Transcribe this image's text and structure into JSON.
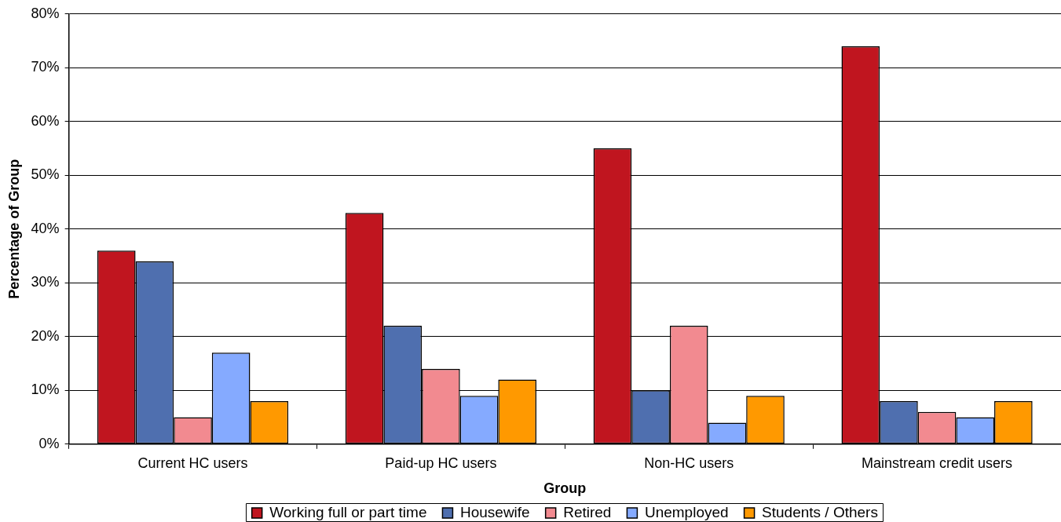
{
  "chart_data": {
    "type": "bar",
    "xlabel": "Group",
    "ylabel": "Percentage of Group",
    "categories": [
      "Current HC users",
      "Paid-up HC users",
      "Non-HC users",
      "Mainstream credit users"
    ],
    "series": [
      {
        "name": "Working full or part time",
        "color": "#c0151f",
        "values": [
          36,
          43,
          55,
          74
        ]
      },
      {
        "name": "Housewife",
        "color": "#4f6faf",
        "values": [
          34,
          22,
          10,
          8
        ]
      },
      {
        "name": "Retired",
        "color": "#f28a90",
        "values": [
          5,
          14,
          22,
          6
        ]
      },
      {
        "name": "Unemployed",
        "color": "#85aaff",
        "values": [
          17,
          9,
          4,
          5
        ]
      },
      {
        "name": "Students / Others",
        "color": "#ff9900",
        "values": [
          8,
          12,
          9,
          8
        ]
      }
    ],
    "ylim": [
      0,
      80
    ],
    "yticks": [
      {
        "value": 0,
        "label": "0%"
      },
      {
        "value": 10,
        "label": "10%"
      },
      {
        "value": 20,
        "label": "20%"
      },
      {
        "value": 30,
        "label": "30%"
      },
      {
        "value": 40,
        "label": "40%"
      },
      {
        "value": 50,
        "label": "50%"
      },
      {
        "value": 60,
        "label": "60%"
      },
      {
        "value": 70,
        "label": "70%"
      },
      {
        "value": 80,
        "label": "80%"
      }
    ],
    "grid": "y",
    "legend": "bottom"
  }
}
